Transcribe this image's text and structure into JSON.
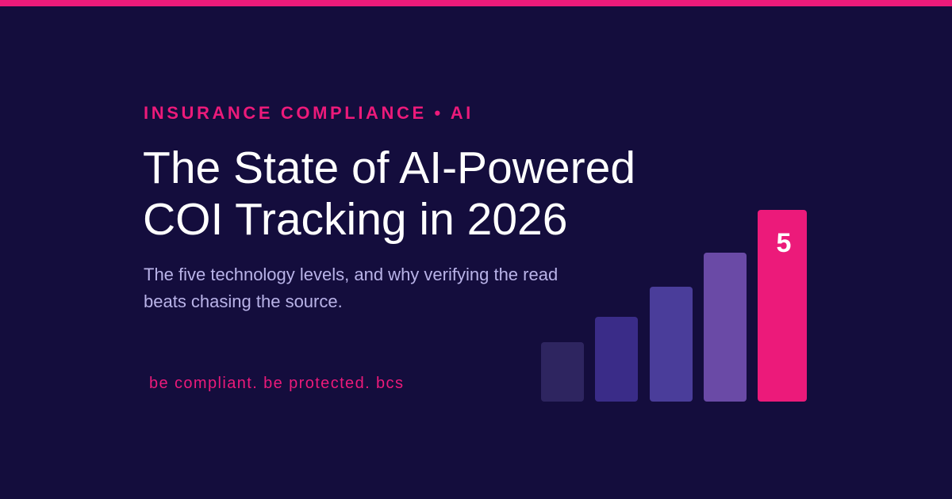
{
  "eyebrow": "INSURANCE COMPLIANCE • AI",
  "title": [
    "The State of AI-Powered",
    "COI Tracking in 2026"
  ],
  "subtitle": [
    "The five technology levels, and why verifying the read",
    "beats chasing the source."
  ],
  "tagline": "be compliant. be protected. bcs",
  "badge": "5"
}
